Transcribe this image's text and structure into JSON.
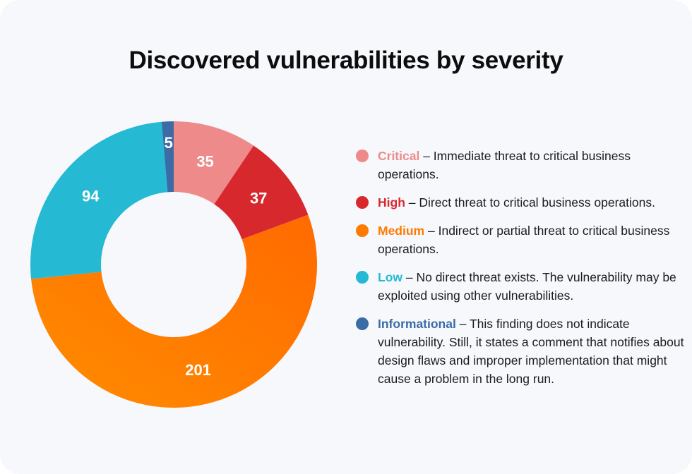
{
  "chart_data": {
    "type": "pie",
    "donut": true,
    "title": "Discovered vulnerabilities by severity",
    "start": "top",
    "direction": "clockwise",
    "categories": [
      "Critical",
      "High",
      "Medium",
      "Low",
      "Informational"
    ],
    "values": [
      35,
      37,
      201,
      94,
      5
    ],
    "colors": [
      "#ee8a8a",
      "#d7282d",
      "#ff7a00",
      "#26b9d4",
      "#3c6ca6"
    ],
    "legend_position": "right",
    "legend": [
      {
        "name": "Critical",
        "separator": " – ",
        "description": "Immediate threat to critical business operations."
      },
      {
        "name": "High",
        "separator": " – ",
        "description": "Direct threat to critical business operations."
      },
      {
        "name": "Medium",
        "separator": " – ",
        "description": "Indirect or partial threat to critical business operations."
      },
      {
        "name": "Low",
        "separator": " – ",
        "description": "No direct threat exists. The vulnerability may be exploited using other vulnerabilities."
      },
      {
        "name": "Informational",
        "separator": " – ",
        "description": "This finding does not indicate vulnerability. Still, it states a comment that notifies about design flaws and improper implementation that might cause a problem in the long run."
      }
    ]
  }
}
